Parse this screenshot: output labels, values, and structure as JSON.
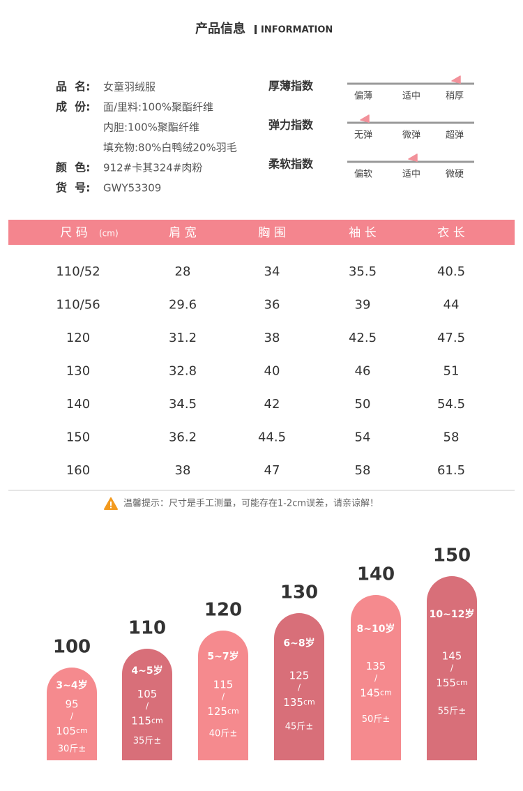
{
  "header": {
    "title": "产品信息",
    "subtitle": "INFORMATION"
  },
  "info": [
    {
      "label": "品  名:",
      "lines": [
        "女童羽绒服"
      ]
    },
    {
      "label": "成  份:",
      "lines": [
        "面/里料:100%聚酯纤维",
        "内胆:100%聚酯纤维",
        "填充物:80%白鸭绒20%羽毛"
      ]
    },
    {
      "label": "颜  色:",
      "lines": [
        "912#卡其324#肉粉"
      ]
    },
    {
      "label": "货  号:",
      "lines": [
        "GWY53309"
      ]
    }
  ],
  "indices": [
    {
      "title": "厚薄指数",
      "levels": [
        "偏薄",
        "适中",
        "稍厚"
      ],
      "selected": 2
    },
    {
      "title": "弹力指数",
      "levels": [
        "无弹",
        "微弹",
        "超弹"
      ],
      "selected": 0
    },
    {
      "title": "柔软指数",
      "levels": [
        "偏软",
        "适中",
        "微硬"
      ],
      "selected": 1
    }
  ],
  "table": {
    "header": [
      "尺 码",
      "肩 宽",
      "胸 围",
      "袖 长",
      "衣 长"
    ],
    "unit": "(cm)",
    "rows": [
      [
        "110/52",
        "28",
        "34",
        "35.5",
        "40.5"
      ],
      [
        "110/56",
        "29.6",
        "36",
        "39",
        "44"
      ],
      [
        "120",
        "31.2",
        "38",
        "42.5",
        "47.5"
      ],
      [
        "130",
        "32.8",
        "40",
        "46",
        "51"
      ],
      [
        "140",
        "34.5",
        "42",
        "50",
        "54.5"
      ],
      [
        "150",
        "36.2",
        "44.5",
        "54",
        "58"
      ],
      [
        "160",
        "38",
        "47",
        "58",
        "61.5"
      ]
    ]
  },
  "notice": "温馨提示：尺寸是手工测量，可能存在1-2cm误差，请亲谅解！",
  "size_chart": [
    {
      "size": "100",
      "age": "3~4岁",
      "height_from": "95",
      "separator": "/",
      "height_to": "105",
      "unit": "cm",
      "weight": "30斤±"
    },
    {
      "size": "110",
      "age": "4~5岁",
      "height_from": "105",
      "separator": "/",
      "height_to": "115",
      "unit": "cm",
      "weight": "35斤±"
    },
    {
      "size": "120",
      "age": "5~7岁",
      "height_from": "115",
      "separator": "/",
      "height_to": "125",
      "unit": "cm",
      "weight": "40斤±"
    },
    {
      "size": "130",
      "age": "6~8岁",
      "height_from": "125",
      "separator": "/",
      "height_to": "135",
      "unit": "cm",
      "weight": "45斤±"
    },
    {
      "size": "140",
      "age": "8~10岁",
      "height_from": "135",
      "separator": "/",
      "height_to": "145",
      "unit": "cm",
      "weight": "50斤±"
    },
    {
      "size": "150",
      "age": "10~12岁",
      "height_from": "145",
      "separator": "/",
      "height_to": "155",
      "unit": "cm",
      "weight": "55斤±"
    }
  ]
}
